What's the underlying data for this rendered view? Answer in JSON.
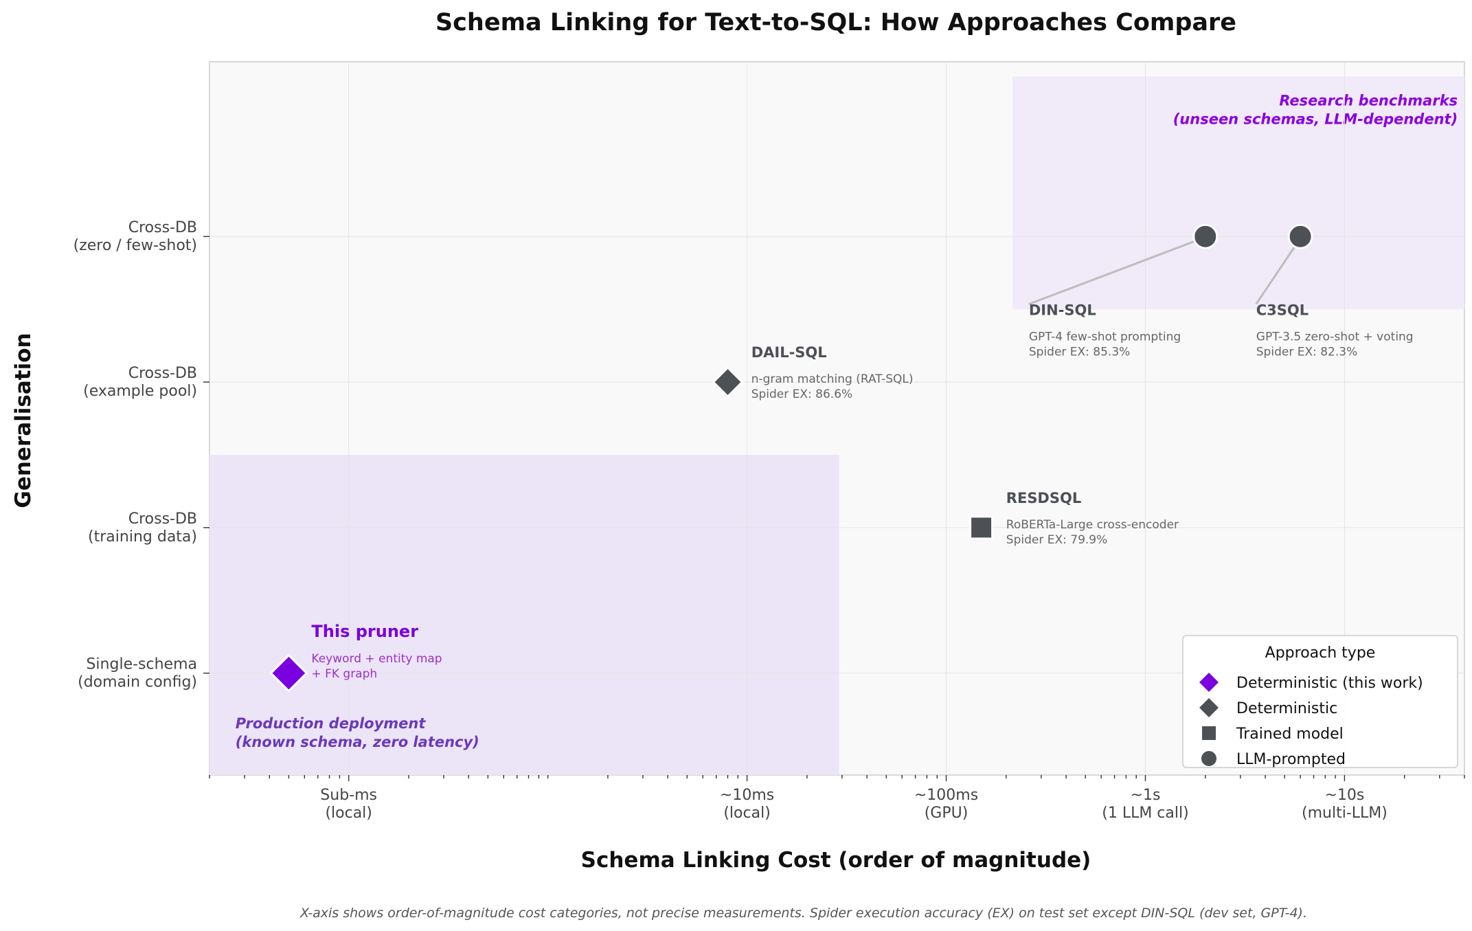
{
  "chart_data": {
    "type": "scatter",
    "title": "Schema Linking for Text-to-SQL: How Approaches Compare",
    "xlabel": "Schema Linking Cost (order of magnitude)",
    "ylabel": "Generalisation",
    "x_scale": "log",
    "x_unit": "seconds",
    "xlim": [
      2e-05,
      40
    ],
    "ylim": [
      -0.7,
      4.2
    ],
    "x_ticks": [
      {
        "value": 0.0001,
        "label": "Sub-ms\n(local)"
      },
      {
        "value": 0.01,
        "label": "~10ms\n(local)"
      },
      {
        "value": 0.1,
        "label": "~100ms\n(GPU)"
      },
      {
        "value": 1,
        "label": "~1s\n(1 LLM call)"
      },
      {
        "value": 10,
        "label": "~10s\n(multi-LLM)"
      }
    ],
    "y_ticks": [
      {
        "value": 0,
        "label": "Single-schema\n(domain config)"
      },
      {
        "value": 1,
        "label": "Cross-DB\n(training data)"
      },
      {
        "value": 2,
        "label": "Cross-DB\n(example pool)"
      },
      {
        "value": 3,
        "label": "Cross-DB\n(zero / few-shot)"
      }
    ],
    "points": [
      {
        "name": "This pruner",
        "x": 5e-05,
        "y": 0,
        "marker": "diamond",
        "color": "#7a00e0",
        "size": "large",
        "desc": [
          "Keyword + entity map",
          "+ FK graph"
        ],
        "label_x": 6.5e-05,
        "label_y": 0.25,
        "title_color": "#7a00e0",
        "desc_color": "#9932cc"
      },
      {
        "name": "DAIL-SQL",
        "x": 0.008,
        "y": 2,
        "marker": "diamond",
        "color": "#4d5055",
        "size": "normal",
        "desc": [
          "n-gram matching (RAT-SQL)",
          "Spider EX: 86.6%"
        ],
        "label_x": 0.0105,
        "label_y": 2.17,
        "title_color": "#4d5055",
        "desc_color": "#666666"
      },
      {
        "name": "RESDSQL",
        "x": 0.15,
        "y": 1,
        "marker": "square",
        "color": "#4d5055",
        "size": "normal",
        "desc": [
          "RoBERTa-Large cross-encoder",
          "Spider EX: 79.9%"
        ],
        "label_x": 0.2,
        "label_y": 1.17,
        "title_color": "#4d5055",
        "desc_color": "#666666"
      },
      {
        "name": "DIN-SQL",
        "x": 2,
        "y": 3,
        "marker": "circle",
        "color": "#4d5055",
        "size": "normal",
        "desc": [
          "GPT-4 few-shot prompting",
          "Spider EX: 85.3%"
        ],
        "label_x": 0.26,
        "label_y": 2.46,
        "title_color": "#4d5055",
        "desc_color": "#666666",
        "connector": true
      },
      {
        "name": "C3SQL",
        "x": 6,
        "y": 3,
        "marker": "circle",
        "color": "#4d5055",
        "size": "normal",
        "desc": [
          "GPT-3.5 zero-shot + voting",
          "Spider EX: 82.3%"
        ],
        "label_x": 3.6,
        "label_y": 2.46,
        "title_color": "#4d5055",
        "desc_color": "#666666",
        "connector": true
      }
    ],
    "regions": [
      {
        "name": "production",
        "label": [
          "Production deployment",
          "(known schema, zero latency)"
        ],
        "x0": 2e-05,
        "x1": 0.029,
        "y0": -0.7,
        "y1": 1.5,
        "fill": "#ece4f7",
        "label_color": "#6a3ab8",
        "label_x": 2.7e-05,
        "label_y": -0.38,
        "anchor": "start"
      },
      {
        "name": "research",
        "label": [
          "Research benchmarks",
          "(unseen schemas, LLM-dependent)"
        ],
        "x0": 0.215,
        "x1": 40,
        "y0": 2.5,
        "y1": 4.1,
        "fill": "#f1eaf9",
        "label_color": "#8a00e0",
        "label_x": 37,
        "label_y": 3.9,
        "anchor": "end"
      }
    ],
    "legend": {
      "title": "Approach type",
      "position": "lower-right",
      "entries": [
        {
          "label": "Deterministic (this work)",
          "marker": "diamond",
          "color": "#7a00e0"
        },
        {
          "label": "Deterministic",
          "marker": "diamond",
          "color": "#4d5055"
        },
        {
          "label": "Trained model",
          "marker": "square",
          "color": "#4d5055"
        },
        {
          "label": "LLM-prompted",
          "marker": "circle",
          "color": "#4d5055"
        }
      ]
    },
    "grid": true,
    "footnote": "X-axis shows order-of-magnitude cost categories, not precise measurements.  Spider execution accuracy (EX) on test set except DIN-SQL (dev set, GPT-4)."
  }
}
